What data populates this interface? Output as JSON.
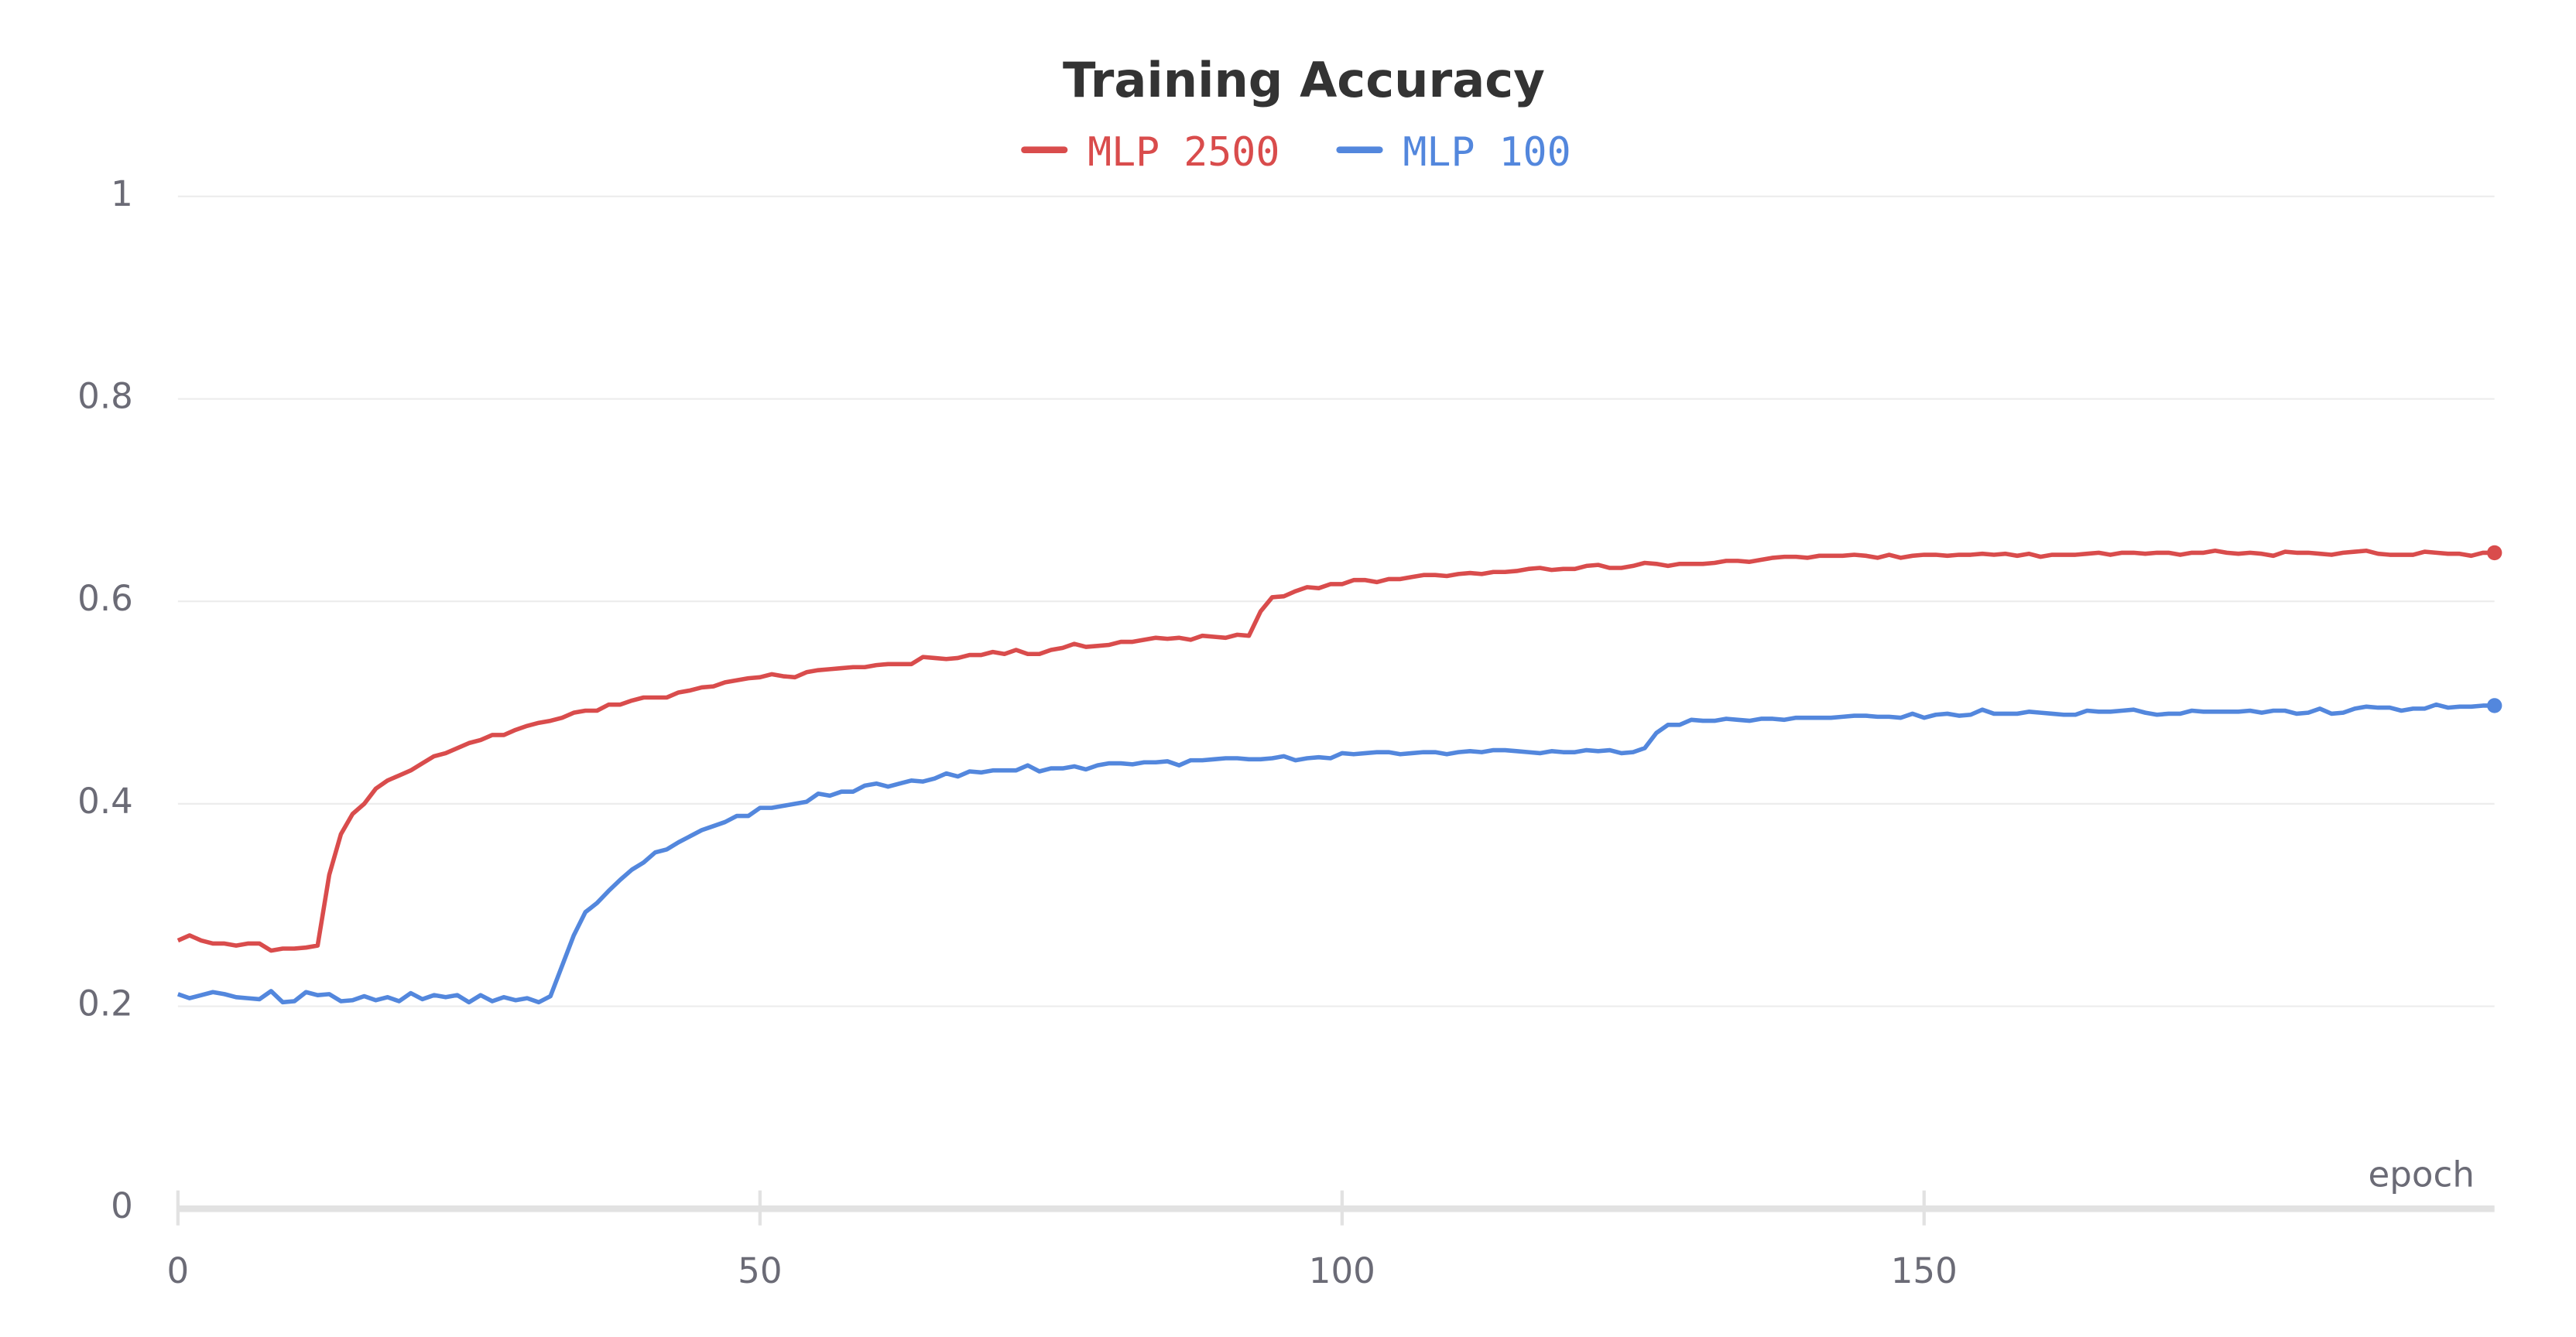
{
  "chart_data": {
    "type": "line",
    "title": "Training Accuracy",
    "xlabel": "epoch",
    "x": [
      0,
      1,
      2,
      3,
      4,
      5,
      6,
      7,
      8,
      9,
      10,
      11,
      12,
      13,
      14,
      15,
      16,
      17,
      18,
      19,
      20,
      21,
      22,
      23,
      24,
      25,
      26,
      27,
      28,
      29,
      30,
      31,
      32,
      33,
      34,
      35,
      36,
      37,
      38,
      39,
      40,
      41,
      42,
      43,
      44,
      45,
      46,
      47,
      48,
      49,
      50,
      51,
      52,
      53,
      54,
      55,
      56,
      57,
      58,
      59,
      60,
      61,
      62,
      63,
      64,
      65,
      66,
      67,
      68,
      69,
      70,
      71,
      72,
      73,
      74,
      75,
      76,
      77,
      78,
      79,
      80,
      81,
      82,
      83,
      84,
      85,
      86,
      87,
      88,
      89,
      90,
      91,
      92,
      93,
      94,
      95,
      96,
      97,
      98,
      99,
      100,
      101,
      102,
      103,
      104,
      105,
      106,
      107,
      108,
      109,
      110,
      111,
      112,
      113,
      114,
      115,
      116,
      117,
      118,
      119,
      120,
      121,
      122,
      123,
      124,
      125,
      126,
      127,
      128,
      129,
      130,
      131,
      132,
      133,
      134,
      135,
      136,
      137,
      138,
      139,
      140,
      141,
      142,
      143,
      144,
      145,
      146,
      147,
      148,
      149,
      150,
      151,
      152,
      153,
      154,
      155,
      156,
      157,
      158,
      159,
      160,
      161,
      162,
      163,
      164,
      165,
      166,
      167,
      168,
      169,
      170,
      171,
      172,
      173,
      174,
      175,
      176,
      177,
      178,
      179,
      180,
      181,
      182,
      183,
      184,
      185,
      186,
      187,
      188,
      189,
      190,
      191,
      192,
      193,
      194,
      195,
      196,
      197,
      198,
      199
    ],
    "series": [
      {
        "name": "MLP 2500",
        "color": "#d94c4c",
        "values": [
          0.265,
          0.27,
          0.265,
          0.262,
          0.262,
          0.26,
          0.262,
          0.262,
          0.255,
          0.257,
          0.257,
          0.258,
          0.26,
          0.33,
          0.37,
          0.39,
          0.4,
          0.415,
          0.423,
          0.428,
          0.433,
          0.44,
          0.447,
          0.45,
          0.455,
          0.46,
          0.463,
          0.468,
          0.468,
          0.473,
          0.477,
          0.48,
          0.482,
          0.485,
          0.49,
          0.492,
          0.492,
          0.498,
          0.498,
          0.502,
          0.505,
          0.505,
          0.505,
          0.51,
          0.512,
          0.515,
          0.516,
          0.52,
          0.522,
          0.524,
          0.525,
          0.528,
          0.526,
          0.525,
          0.53,
          0.532,
          0.533,
          0.534,
          0.535,
          0.535,
          0.537,
          0.538,
          0.538,
          0.538,
          0.545,
          0.544,
          0.543,
          0.544,
          0.547,
          0.547,
          0.55,
          0.548,
          0.552,
          0.548,
          0.548,
          0.552,
          0.554,
          0.558,
          0.555,
          0.556,
          0.557,
          0.56,
          0.56,
          0.562,
          0.564,
          0.563,
          0.564,
          0.562,
          0.566,
          0.565,
          0.564,
          0.567,
          0.566,
          0.59,
          0.604,
          0.605,
          0.61,
          0.614,
          0.613,
          0.617,
          0.617,
          0.621,
          0.621,
          0.619,
          0.622,
          0.622,
          0.624,
          0.626,
          0.626,
          0.625,
          0.627,
          0.628,
          0.627,
          0.629,
          0.629,
          0.63,
          0.632,
          0.633,
          0.631,
          0.632,
          0.632,
          0.635,
          0.636,
          0.633,
          0.633,
          0.635,
          0.638,
          0.637,
          0.635,
          0.637,
          0.637,
          0.637,
          0.638,
          0.64,
          0.64,
          0.639,
          0.641,
          0.643,
          0.644,
          0.644,
          0.643,
          0.645,
          0.645,
          0.645,
          0.646,
          0.645,
          0.643,
          0.646,
          0.643,
          0.645,
          0.646,
          0.646,
          0.645,
          0.646,
          0.646,
          0.647,
          0.646,
          0.647,
          0.645,
          0.647,
          0.644,
          0.646,
          0.646,
          0.646,
          0.647,
          0.648,
          0.646,
          0.648,
          0.648,
          0.647,
          0.648,
          0.648,
          0.646,
          0.648,
          0.648,
          0.65,
          0.648,
          0.647,
          0.648,
          0.647,
          0.645,
          0.649,
          0.648,
          0.648,
          0.647,
          0.646,
          0.648,
          0.649,
          0.65,
          0.647,
          0.646,
          0.646,
          0.646,
          0.649,
          0.648,
          0.647,
          0.647,
          0.645,
          0.648,
          0.648
        ]
      },
      {
        "name": "MLP 100",
        "color": "#5387dd",
        "values": [
          0.212,
          0.208,
          0.211,
          0.214,
          0.212,
          0.209,
          0.208,
          0.207,
          0.215,
          0.204,
          0.205,
          0.214,
          0.211,
          0.212,
          0.205,
          0.206,
          0.21,
          0.206,
          0.209,
          0.205,
          0.213,
          0.207,
          0.211,
          0.209,
          0.211,
          0.204,
          0.211,
          0.205,
          0.209,
          0.206,
          0.208,
          0.204,
          0.21,
          0.24,
          0.27,
          0.293,
          0.302,
          0.314,
          0.325,
          0.335,
          0.342,
          0.352,
          0.355,
          0.362,
          0.368,
          0.374,
          0.378,
          0.382,
          0.388,
          0.388,
          0.396,
          0.396,
          0.398,
          0.4,
          0.402,
          0.41,
          0.408,
          0.412,
          0.412,
          0.418,
          0.42,
          0.417,
          0.42,
          0.423,
          0.422,
          0.425,
          0.43,
          0.427,
          0.432,
          0.431,
          0.433,
          0.433,
          0.433,
          0.438,
          0.432,
          0.435,
          0.435,
          0.437,
          0.434,
          0.438,
          0.44,
          0.44,
          0.439,
          0.441,
          0.441,
          0.442,
          0.438,
          0.443,
          0.443,
          0.444,
          0.445,
          0.445,
          0.444,
          0.444,
          0.445,
          0.447,
          0.443,
          0.445,
          0.446,
          0.445,
          0.45,
          0.449,
          0.45,
          0.451,
          0.451,
          0.449,
          0.45,
          0.451,
          0.451,
          0.449,
          0.451,
          0.452,
          0.451,
          0.453,
          0.453,
          0.452,
          0.451,
          0.45,
          0.452,
          0.451,
          0.451,
          0.453,
          0.452,
          0.453,
          0.45,
          0.451,
          0.455,
          0.47,
          0.478,
          0.478,
          0.483,
          0.482,
          0.482,
          0.484,
          0.483,
          0.482,
          0.484,
          0.484,
          0.483,
          0.485,
          0.485,
          0.485,
          0.485,
          0.486,
          0.487,
          0.487,
          0.486,
          0.486,
          0.485,
          0.489,
          0.485,
          0.488,
          0.489,
          0.487,
          0.488,
          0.493,
          0.489,
          0.489,
          0.489,
          0.491,
          0.49,
          0.489,
          0.488,
          0.488,
          0.492,
          0.491,
          0.491,
          0.492,
          0.493,
          0.49,
          0.488,
          0.489,
          0.489,
          0.492,
          0.491,
          0.491,
          0.491,
          0.491,
          0.492,
          0.49,
          0.492,
          0.492,
          0.489,
          0.49,
          0.494,
          0.489,
          0.49,
          0.494,
          0.496,
          0.495,
          0.495,
          0.492,
          0.494,
          0.494,
          0.498,
          0.495,
          0.496,
          0.496,
          0.497,
          0.497
        ]
      }
    ],
    "xlim": [
      0,
      199
    ],
    "xticks": [
      0,
      50,
      100,
      150
    ],
    "ylim": [
      0,
      1
    ],
    "yticks": [
      0,
      0.2,
      0.4,
      0.6,
      0.8,
      1
    ],
    "grid": true
  }
}
